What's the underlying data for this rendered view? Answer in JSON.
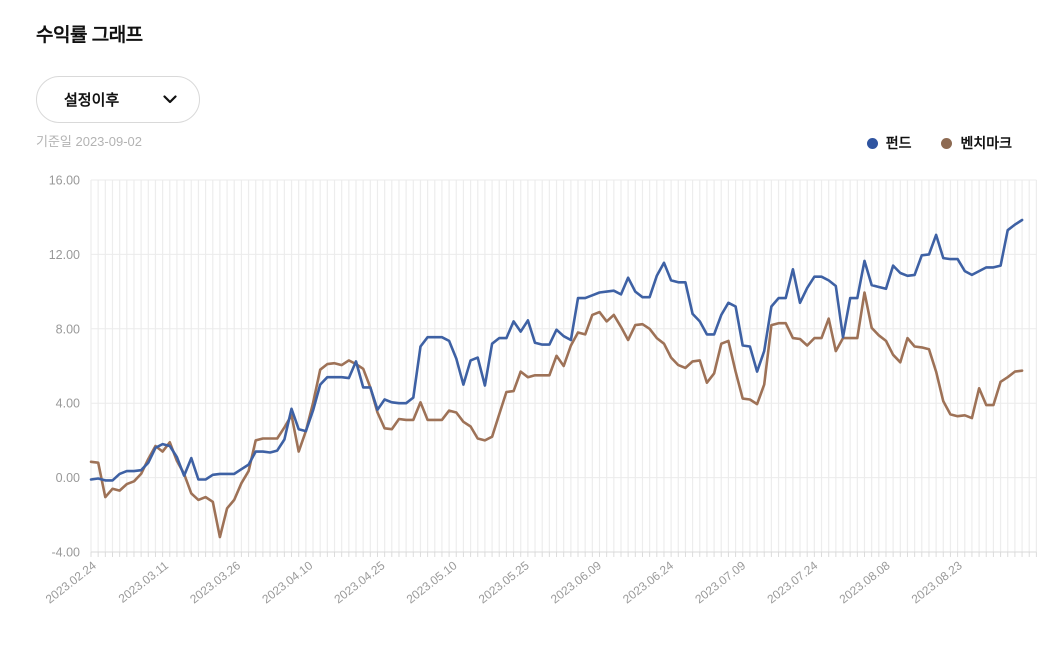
{
  "header": {
    "title": "수익률 그래프"
  },
  "controls": {
    "period_dropdown": {
      "value": "설정이후"
    },
    "baseline_label": "기준일 2023-09-02"
  },
  "legend": [
    {
      "name": "펀드",
      "color": "#2f54a0"
    },
    {
      "name": "벤치마크",
      "color": "#8d6a52"
    }
  ],
  "chart_data": {
    "type": "line",
    "title": "수익률 그래프",
    "xlabel": "",
    "ylabel": "",
    "ylim": [
      -4,
      16
    ],
    "yticks": [
      16,
      12,
      8,
      4,
      0,
      -4
    ],
    "grid": true,
    "legend_position": "top-right",
    "x_tick_labels": [
      "2023.02.24",
      "2023.03.11",
      "2023.03.26",
      "2023.04.10",
      "2023.04.25",
      "2023.05.10",
      "2023.05.25",
      "2023.06.09",
      "2023.06.24",
      "2023.07.09",
      "2023.07.24",
      "2023.08.08",
      "2023.08.23"
    ],
    "series": [
      {
        "name": "펀드",
        "color": "#3e61a4",
        "values": [
          -0.1,
          -0.05,
          -0.15,
          -0.15,
          0.2,
          0.35,
          0.35,
          0.4,
          0.8,
          1.6,
          1.8,
          1.7,
          1.1,
          0.1,
          1.05,
          -0.1,
          -0.1,
          0.15,
          0.2,
          0.2,
          0.2,
          0.45,
          0.7,
          1.4,
          1.4,
          1.35,
          1.45,
          2.05,
          3.7,
          2.6,
          2.5,
          3.6,
          5.0,
          5.4,
          5.4,
          5.4,
          5.35,
          6.25,
          4.85,
          4.85,
          3.65,
          4.2,
          4.05,
          4.0,
          4.0,
          4.3,
          7.05,
          7.55,
          7.55,
          7.55,
          7.35,
          6.4,
          5.0,
          6.3,
          6.45,
          4.95,
          7.2,
          7.5,
          7.5,
          8.4,
          7.85,
          8.45,
          7.25,
          7.15,
          7.15,
          7.95,
          7.6,
          7.4,
          9.65,
          9.65,
          9.8,
          9.95,
          10.0,
          10.05,
          9.85,
          10.75,
          10.0,
          9.7,
          9.7,
          10.85,
          11.55,
          10.6,
          10.5,
          10.5,
          8.8,
          8.4,
          7.7,
          7.7,
          8.75,
          9.4,
          9.2,
          7.1,
          7.05,
          5.7,
          6.8,
          9.2,
          9.65,
          9.65,
          11.2,
          9.4,
          10.2,
          10.8,
          10.8,
          10.6,
          10.3,
          7.55,
          9.65,
          9.65,
          11.65,
          10.35,
          10.25,
          10.15,
          11.4,
          11.0,
          10.85,
          10.9,
          11.95,
          12.0,
          13.05,
          11.8,
          11.75,
          11.75,
          11.1,
          10.9,
          11.1,
          11.3,
          11.3,
          11.4,
          13.3,
          13.6,
          13.85
        ]
      },
      {
        "name": "벤치마크",
        "color": "#9e7257",
        "values": [
          0.85,
          0.8,
          -1.05,
          -0.6,
          -0.7,
          -0.35,
          -0.2,
          0.2,
          1.0,
          1.7,
          1.4,
          1.9,
          0.9,
          0.2,
          -0.85,
          -1.2,
          -1.05,
          -1.3,
          -3.2,
          -1.65,
          -1.2,
          -0.3,
          0.35,
          2.0,
          2.1,
          2.1,
          2.1,
          2.7,
          3.35,
          1.4,
          2.5,
          4.0,
          5.8,
          6.1,
          6.15,
          6.05,
          6.3,
          6.1,
          5.85,
          4.85,
          3.5,
          2.65,
          2.6,
          3.15,
          3.1,
          3.1,
          4.05,
          3.1,
          3.1,
          3.1,
          3.6,
          3.5,
          3.0,
          2.75,
          2.1,
          2.0,
          2.2,
          3.4,
          4.6,
          4.65,
          5.7,
          5.4,
          5.5,
          5.5,
          5.5,
          6.55,
          6.0,
          7.1,
          7.8,
          7.7,
          8.75,
          8.9,
          8.4,
          8.75,
          8.1,
          7.4,
          8.2,
          8.25,
          8.0,
          7.5,
          7.2,
          6.45,
          6.05,
          5.9,
          6.25,
          6.3,
          5.1,
          5.6,
          7.2,
          7.35,
          5.7,
          4.25,
          4.2,
          3.95,
          5.0,
          8.2,
          8.3,
          8.3,
          7.5,
          7.45,
          7.1,
          7.5,
          7.5,
          8.55,
          6.8,
          7.5,
          7.5,
          7.5,
          9.95,
          8.05,
          7.65,
          7.35,
          6.6,
          6.2,
          7.5,
          7.05,
          7.0,
          6.9,
          5.7,
          4.1,
          3.4,
          3.3,
          3.35,
          3.2,
          4.8,
          3.9,
          3.9,
          5.15,
          5.4,
          5.7,
          5.75
        ]
      }
    ]
  }
}
